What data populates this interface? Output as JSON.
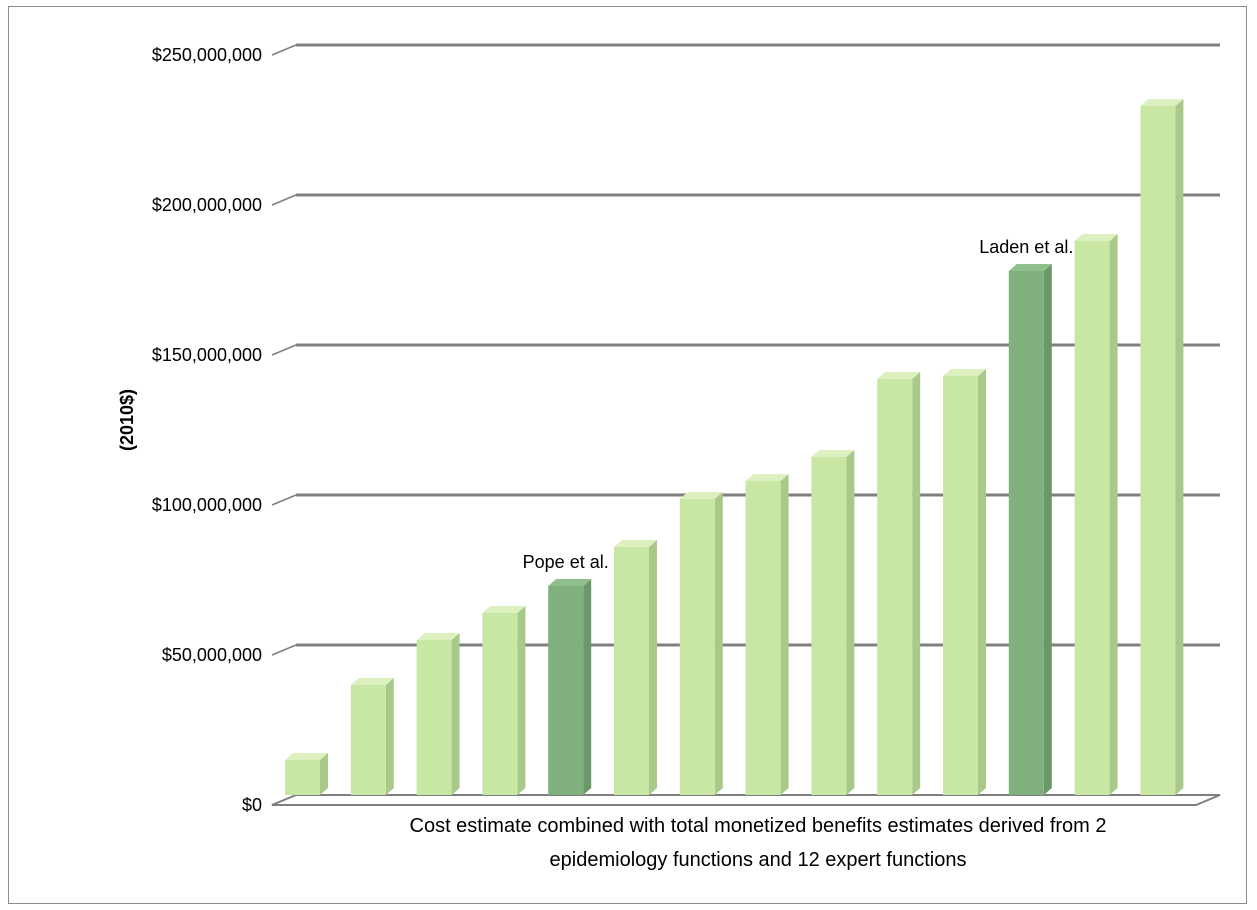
{
  "chart_data": {
    "type": "bar",
    "title": "",
    "xlabel_lines": [
      "Cost estimate combined with total monetized benefits estimates derived from 2",
      "epidemiology functions and 12 expert functions"
    ],
    "ylabel": "(2010$)",
    "ylim": [
      0,
      250000000
    ],
    "yticks": [
      0,
      50000000,
      100000000,
      150000000,
      200000000,
      250000000
    ],
    "ytick_labels": [
      "$0",
      "$50,000,000",
      "$100,000,000",
      "$150,000,000",
      "$200,000,000",
      "$250,000,000"
    ],
    "grid": true,
    "legend": "none",
    "values": [
      14000000,
      39000000,
      54000000,
      63000000,
      72000000,
      85000000,
      101000000,
      107000000,
      115000000,
      141000000,
      142000000,
      177000000,
      187000000,
      232000000
    ],
    "highlight_indices": [
      4,
      11
    ],
    "annotations": [
      {
        "index": 4,
        "text": "Pope et al."
      },
      {
        "index": 11,
        "text": "Laden et al."
      }
    ],
    "colors": {
      "bar": "#c8e6a4",
      "bar_side": "#a9c98a",
      "bar_top": "#dcf0c0",
      "highlight": "#7fb07d",
      "highlight_side": "#6a9868",
      "highlight_top": "#8fbf8c",
      "gridline": "#7f7f7f"
    }
  }
}
